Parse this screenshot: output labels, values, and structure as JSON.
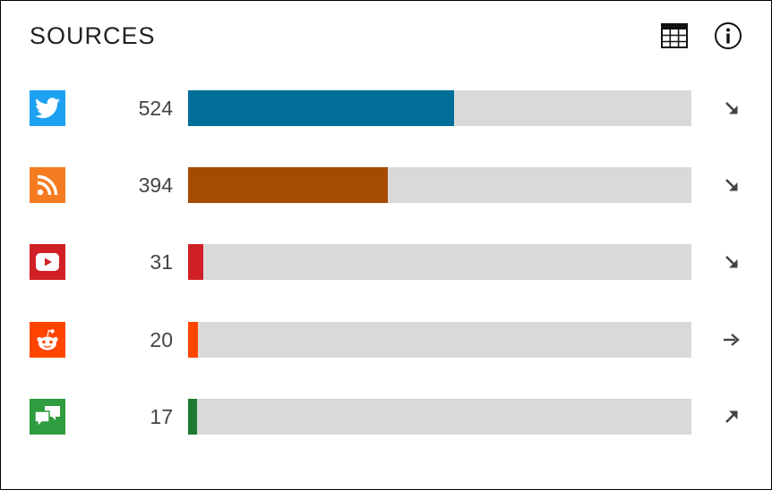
{
  "panel": {
    "title": "SOURCES",
    "table_icon": "table-icon",
    "info_icon": "info-icon"
  },
  "sources": [
    {
      "icon": "twitter-icon",
      "icon_bg": "#1da1f2",
      "count": "524",
      "bar_fraction": 0.528,
      "bar_color": "#006e99",
      "trend": "down-right-arrow-icon"
    },
    {
      "icon": "rss-icon",
      "icon_bg": "#f47b20",
      "count": "394",
      "bar_fraction": 0.397,
      "bar_color": "#a54c00",
      "trend": "down-right-arrow-icon"
    },
    {
      "icon": "youtube-icon",
      "icon_bg": "#d02026",
      "count": "31",
      "bar_fraction": 0.031,
      "bar_color": "#d02026",
      "trend": "down-right-arrow-icon"
    },
    {
      "icon": "reddit-icon",
      "icon_bg": "#ff4500",
      "count": "20",
      "bar_fraction": 0.02,
      "bar_color": "#ff4500",
      "trend": "right-arrow-icon"
    },
    {
      "icon": "forum-icon",
      "icon_bg": "#2e9c3f",
      "count": "17",
      "bar_fraction": 0.017,
      "bar_color": "#1d7a30",
      "trend": "up-right-arrow-icon"
    }
  ]
}
